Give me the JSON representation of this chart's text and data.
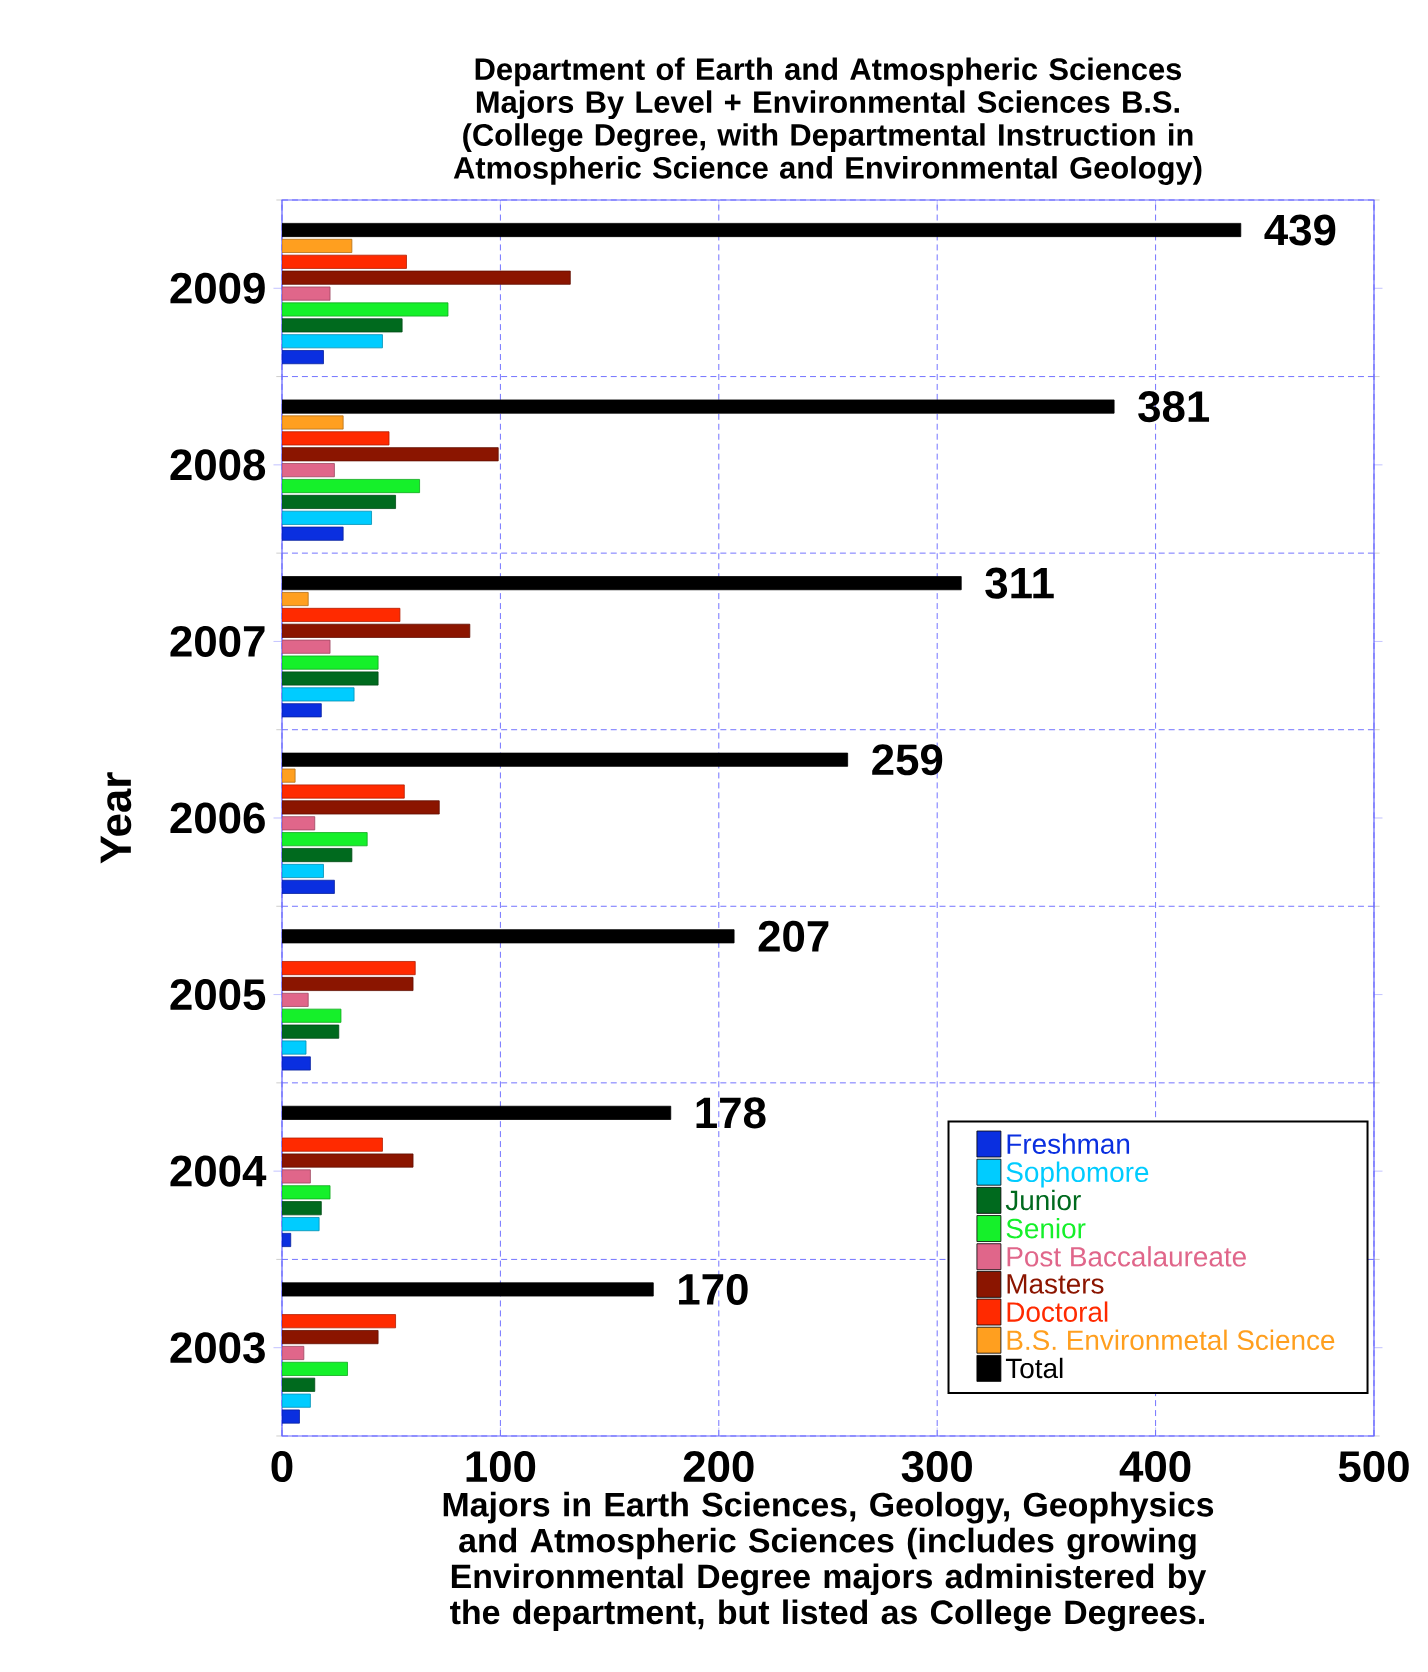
{
  "chart_data": {
    "type": "bar",
    "orientation": "horizontal",
    "title": "Department of Earth and Atmospheric Sciences Majors By Level + Environmental Sciences B.S. (College Degree, with Departmental Instruction in Atmospheric Science and Environmental Geology)",
    "xlabel": "Majors in Earth Sciences, Geology, Geophysics and Atmospheric Sciences (includes growing Environmental Degree majors administered by the department, but listed as College Degrees.",
    "ylabel": "Year",
    "categories": [
      "2009",
      "2008",
      "2007",
      "2006",
      "2005",
      "2004",
      "2003"
    ],
    "series": [
      {
        "name": "Freshman",
        "color": "#0a2fe0",
        "values": [
          19,
          28,
          18,
          24,
          13,
          4,
          8
        ]
      },
      {
        "name": "Sophomore",
        "color": "#00ccff",
        "values": [
          46,
          41,
          33,
          19,
          11,
          17,
          13
        ]
      },
      {
        "name": "Junior",
        "color": "#006a1e",
        "values": [
          55,
          52,
          44,
          32,
          26,
          18,
          15
        ]
      },
      {
        "name": "Senior",
        "color": "#15f02a",
        "values": [
          76,
          63,
          44,
          39,
          27,
          22,
          30
        ]
      },
      {
        "name": "Post Baccalaureate",
        "color": "#e0668a",
        "values": [
          22,
          24,
          22,
          15,
          12,
          13,
          10
        ]
      },
      {
        "name": "Masters",
        "color": "#8b1500",
        "values": [
          132,
          99,
          86,
          72,
          60,
          60,
          44
        ]
      },
      {
        "name": "Doctoral",
        "color": "#ff2a00",
        "values": [
          57,
          49,
          54,
          56,
          61,
          46,
          52
        ]
      },
      {
        "name": "B.S. Environmetal Science",
        "color": "#ff9f1f",
        "values": [
          32,
          28,
          12,
          6,
          null,
          null,
          null
        ]
      },
      {
        "name": "Total",
        "color": "#000000",
        "values": [
          439,
          381,
          311,
          259,
          207,
          178,
          170
        ],
        "value_labels": [
          "439",
          "381",
          "311",
          "259",
          "207",
          "178",
          "170"
        ]
      }
    ],
    "xlim": [
      0,
      500
    ],
    "xticks": [
      0,
      100,
      200,
      300,
      400,
      500
    ],
    "grid": true,
    "legend": "bottom right"
  }
}
